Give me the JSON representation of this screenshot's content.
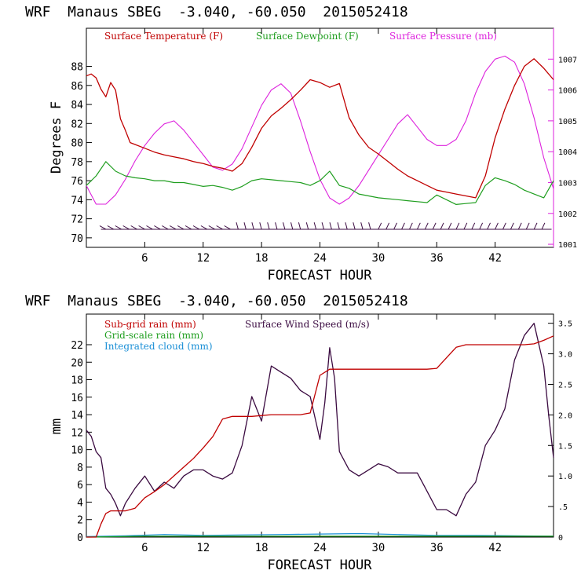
{
  "page": {
    "header_top": "WRF  Manaus SBEG  -3.040, -60.050  2015052418",
    "header_bottom": "WRF  Manaus SBEG  -3.040, -60.050  2015052418"
  },
  "colors": {
    "temperature": "#c00000",
    "dewpoint": "#1f9e1f",
    "pressure": "#dd22dd",
    "subgrid_rain": "#c00000",
    "gridscale_rain": "#1f9e1f",
    "cloud": "#1a8fd6",
    "wind": "#3a0a40"
  },
  "chart_data": [
    {
      "type": "line",
      "xlabel": "FORECAST HOUR",
      "ylabel": "Degrees F",
      "xlim": [
        0,
        48
      ],
      "xticks": [
        6,
        12,
        18,
        24,
        30,
        36,
        42
      ],
      "ylim": [
        69,
        92
      ],
      "yticks": [
        70,
        72,
        74,
        76,
        78,
        80,
        82,
        84,
        86,
        88
      ],
      "y2lim": [
        1000.9,
        1008.0
      ],
      "y2ticks": [
        1001,
        1002,
        1003,
        1004,
        1005,
        1006,
        1007
      ],
      "grid": false,
      "legend_position": "top",
      "series": [
        {
          "name": "Surface Temperature (F)",
          "axis": "left",
          "x": [
            0,
            0.5,
            1,
            1.5,
            2,
            2.5,
            3,
            3.5,
            4,
            4.5,
            5,
            6,
            7,
            8,
            9,
            10,
            11,
            12,
            13,
            14,
            15,
            16,
            17,
            18,
            19,
            20,
            21,
            22,
            23,
            24,
            25,
            26,
            27,
            28,
            29,
            30,
            31,
            32,
            33,
            34,
            35,
            36,
            37,
            38,
            39,
            40,
            41,
            42,
            43,
            44,
            45,
            46,
            47,
            48
          ],
          "values": [
            87,
            87.2,
            86.8,
            85.6,
            84.8,
            86.3,
            85.5,
            82.5,
            81.3,
            80.0,
            79.8,
            79.4,
            79.0,
            78.7,
            78.5,
            78.3,
            78.0,
            77.8,
            77.5,
            77.3,
            77.0,
            77.8,
            79.5,
            81.5,
            82.8,
            83.6,
            84.5,
            85.5,
            86.6,
            86.3,
            85.8,
            86.2,
            82.6,
            80.8,
            79.5,
            78.8,
            78.0,
            77.2,
            76.5,
            76.0,
            75.5,
            75.0,
            74.8,
            74.6,
            74.4,
            74.2,
            76.5,
            80.5,
            83.5,
            86.0,
            88.0,
            88.8,
            87.8,
            86.6
          ]
        },
        {
          "name": "Surface Dewpoint (F)",
          "axis": "left",
          "x": [
            0,
            1,
            2,
            3,
            4,
            5,
            6,
            7,
            8,
            9,
            10,
            11,
            12,
            13,
            14,
            15,
            16,
            17,
            18,
            19,
            20,
            21,
            22,
            23,
            24,
            25,
            26,
            27,
            28,
            29,
            30,
            31,
            32,
            33,
            34,
            35,
            36,
            37,
            38,
            39,
            40,
            41,
            42,
            43,
            44,
            45,
            46,
            47,
            48
          ],
          "values": [
            75.5,
            76.5,
            78.0,
            77.0,
            76.5,
            76.3,
            76.2,
            76.0,
            76.0,
            75.8,
            75.8,
            75.6,
            75.4,
            75.5,
            75.3,
            75.0,
            75.4,
            76.0,
            76.2,
            76.1,
            76.0,
            75.9,
            75.8,
            75.5,
            76.0,
            77.0,
            75.5,
            75.2,
            74.6,
            74.4,
            74.2,
            74.1,
            74.0,
            73.9,
            73.8,
            73.7,
            74.5,
            74.0,
            73.5,
            73.6,
            73.7,
            75.5,
            76.3,
            76.0,
            75.6,
            75.0,
            74.6,
            74.2,
            76.0
          ]
        },
        {
          "name": "Surface Pressure (mb)",
          "axis": "right",
          "x": [
            0,
            1,
            2,
            3,
            4,
            5,
            6,
            7,
            8,
            9,
            10,
            11,
            12,
            13,
            14,
            15,
            16,
            17,
            18,
            19,
            20,
            21,
            22,
            23,
            24,
            25,
            26,
            27,
            28,
            29,
            30,
            31,
            32,
            33,
            34,
            35,
            36,
            37,
            38,
            39,
            40,
            41,
            42,
            43,
            44,
            45,
            46,
            47,
            48
          ],
          "values": [
            1002.9,
            1002.3,
            1002.3,
            1002.6,
            1003.1,
            1003.7,
            1004.2,
            1004.6,
            1004.9,
            1005.0,
            1004.7,
            1004.3,
            1003.9,
            1003.5,
            1003.4,
            1003.6,
            1004.1,
            1004.8,
            1005.5,
            1006.0,
            1006.2,
            1005.9,
            1005.0,
            1004.0,
            1003.1,
            1002.5,
            1002.3,
            1002.5,
            1002.9,
            1003.4,
            1003.9,
            1004.4,
            1004.9,
            1005.2,
            1004.8,
            1004.4,
            1004.2,
            1004.2,
            1004.4,
            1005.0,
            1005.9,
            1006.6,
            1007.0,
            1007.1,
            1006.9,
            1006.2,
            1005.1,
            1003.8,
            1002.8
          ]
        }
      ],
      "wind_barbs_label": "",
      "legend": [
        "Surface Temperature (F)",
        "Surface Dewpoint (F)",
        "Surface Pressure (mb)"
      ]
    },
    {
      "type": "line",
      "xlabel": "FORECAST HOUR",
      "ylabel": "mm",
      "xlim": [
        0,
        48
      ],
      "xticks": [
        6,
        12,
        18,
        24,
        30,
        36,
        42
      ],
      "ylim": [
        0,
        25.5
      ],
      "yticks": [
        0,
        2,
        4,
        6,
        8,
        10,
        12,
        14,
        16,
        18,
        20,
        22
      ],
      "y2lim": [
        0,
        3.65
      ],
      "y2ticks": [
        0,
        0.5,
        1.0,
        1.5,
        2.0,
        2.5,
        3.0,
        3.5
      ],
      "y2ticklabels": [
        "0",
        ".5",
        "1.0",
        "1.5",
        "2.0",
        "2.5",
        "3.0",
        "3.5"
      ],
      "grid": false,
      "legend_position": "top-left",
      "series": [
        {
          "name": "Sub-grid rain (mm)",
          "axis": "left",
          "x": [
            0,
            0.5,
            1,
            1.5,
            2,
            2.5,
            3,
            4,
            5,
            6,
            7,
            8,
            9,
            10,
            11,
            12,
            13,
            14,
            15,
            16,
            17,
            18,
            19,
            20,
            21,
            22,
            23,
            24,
            25,
            26,
            27,
            28,
            29,
            30,
            31,
            32,
            33,
            34,
            35,
            36,
            37,
            38,
            39,
            40,
            41,
            42,
            43,
            44,
            45,
            46,
            47,
            48
          ],
          "values": [
            0,
            0,
            0,
            1.5,
            2.7,
            3.0,
            3.0,
            3.0,
            3.3,
            4.5,
            5.2,
            6.0,
            7.0,
            8.0,
            9.0,
            10.2,
            11.5,
            13.5,
            13.8,
            13.8,
            13.8,
            13.9,
            14.0,
            14.0,
            14.0,
            14.0,
            14.2,
            18.5,
            19.2,
            19.2,
            19.2,
            19.2,
            19.2,
            19.2,
            19.2,
            19.2,
            19.2,
            19.2,
            19.2,
            19.3,
            20.5,
            21.7,
            22.0,
            22.0,
            22.0,
            22.0,
            22.0,
            22.0,
            22.0,
            22.1,
            22.5,
            23.0
          ]
        },
        {
          "name": "Grid-scale rain (mm)",
          "axis": "left",
          "x": [
            0,
            6,
            12,
            18,
            24,
            30,
            36,
            42,
            48
          ],
          "values": [
            0,
            0.1,
            0.1,
            0.1,
            0.1,
            0.1,
            0.1,
            0.1,
            0.1
          ]
        },
        {
          "name": "Integrated cloud (mm)",
          "axis": "left",
          "x": [
            0,
            4,
            8,
            12,
            16,
            20,
            24,
            28,
            32,
            36,
            40,
            44,
            48
          ],
          "values": [
            0.05,
            0.15,
            0.3,
            0.2,
            0.25,
            0.3,
            0.35,
            0.4,
            0.3,
            0.2,
            0.2,
            0.15,
            0.1
          ]
        },
        {
          "name": "Surface Wind Speed (m/s)",
          "axis": "right",
          "x": [
            0,
            0.5,
            1,
            1.5,
            2,
            2.5,
            3,
            3.5,
            4,
            5,
            6,
            7,
            8,
            9,
            10,
            11,
            12,
            13,
            14,
            15,
            16,
            17,
            18,
            19,
            20,
            21,
            22,
            23,
            24,
            24.5,
            25,
            25.5,
            26,
            27,
            28,
            29,
            30,
            31,
            32,
            33,
            34,
            35,
            36,
            37,
            38,
            39,
            40,
            41,
            42,
            43,
            44,
            45,
            46,
            47,
            47.5,
            48
          ],
          "values": [
            1.75,
            1.65,
            1.4,
            1.3,
            0.8,
            0.7,
            0.55,
            0.35,
            0.55,
            0.8,
            1.0,
            0.75,
            0.9,
            0.8,
            1.0,
            1.1,
            1.1,
            1.0,
            0.95,
            1.05,
            1.5,
            2.3,
            1.9,
            2.8,
            2.7,
            2.6,
            2.4,
            2.3,
            1.6,
            2.2,
            3.1,
            2.6,
            1.4,
            1.1,
            1.0,
            1.1,
            1.2,
            1.15,
            1.05,
            1.05,
            1.05,
            0.75,
            0.45,
            0.45,
            0.35,
            0.7,
            0.9,
            1.5,
            1.75,
            2.1,
            2.9,
            3.3,
            3.5,
            2.8,
            2.0,
            1.3
          ]
        }
      ],
      "legend": [
        "Sub-grid rain (mm)",
        "Surface Wind Speed (m/s)",
        "Grid-scale rain (mm)",
        "Integrated cloud (mm)"
      ]
    }
  ]
}
